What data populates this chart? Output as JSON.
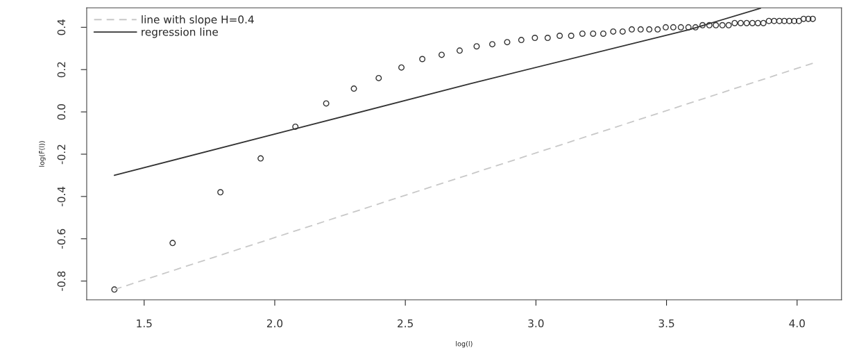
{
  "chart_data": {
    "type": "scatter",
    "xlabel": "log(l)",
    "ylabel": "log(F̂(l))",
    "xlim": [
      1.28,
      4.17
    ],
    "ylim": [
      -0.889,
      0.492
    ],
    "xticks": [
      {
        "value": 1.5,
        "label": "1.5"
      },
      {
        "value": 2.0,
        "label": "2.0"
      },
      {
        "value": 2.5,
        "label": "2.5"
      },
      {
        "value": 3.0,
        "label": "3.0"
      },
      {
        "value": 3.5,
        "label": "3.5"
      },
      {
        "value": 4.0,
        "label": "4.0"
      }
    ],
    "yticks": [
      {
        "value": -0.8,
        "label": "-0.8"
      },
      {
        "value": -0.6,
        "label": "-0.6"
      },
      {
        "value": -0.4,
        "label": "-0.4"
      },
      {
        "value": -0.2,
        "label": "-0.2"
      },
      {
        "value": 0.0,
        "label": "0.0"
      },
      {
        "value": 0.2,
        "label": "0.2"
      },
      {
        "value": 0.4,
        "label": "0.4"
      }
    ],
    "grid": false,
    "legend": "top left",
    "series": [
      {
        "type": "line",
        "name": "line with slope H=0.4",
        "color": "#c8c8c8",
        "line_style": "dashed",
        "marker": "none",
        "x": [
          1.386,
          4.06
        ],
        "values": [
          -0.84,
          0.23
        ]
      },
      {
        "type": "line",
        "name": "regression line",
        "color": "#333333",
        "line_style": "solid",
        "marker": "none",
        "x": [
          1.386,
          2.079,
          2.75,
          3.59,
          3.86
        ],
        "values": [
          -0.3,
          -0.08,
          0.134,
          0.39,
          0.49
        ]
      },
      {
        "color": "#333333",
        "marker": "circle",
        "x": [
          1.386,
          1.609,
          1.792,
          1.946,
          2.079,
          2.197,
          2.303,
          2.398,
          2.485,
          2.565,
          2.639,
          2.708,
          2.773,
          2.833,
          2.89,
          2.944,
          2.996,
          3.045,
          3.091,
          3.135,
          3.178,
          3.219,
          3.258,
          3.296,
          3.332,
          3.367,
          3.401,
          3.434,
          3.466,
          3.497,
          3.526,
          3.555,
          3.584,
          3.611,
          3.638,
          3.664,
          3.689,
          3.714,
          3.738,
          3.761,
          3.784,
          3.807,
          3.829,
          3.85,
          3.871,
          3.892,
          3.912,
          3.932,
          3.951,
          3.97,
          3.989,
          4.007,
          4.025,
          4.043,
          4.06
        ],
        "values": [
          -0.84,
          -0.62,
          -0.38,
          -0.22,
          -0.07,
          0.04,
          0.11,
          0.16,
          0.21,
          0.25,
          0.27,
          0.29,
          0.31,
          0.32,
          0.33,
          0.34,
          0.35,
          0.35,
          0.36,
          0.36,
          0.37,
          0.37,
          0.37,
          0.38,
          0.38,
          0.39,
          0.39,
          0.39,
          0.39,
          0.4,
          0.4,
          0.4,
          0.4,
          0.4,
          0.41,
          0.41,
          0.41,
          0.41,
          0.41,
          0.42,
          0.42,
          0.42,
          0.42,
          0.42,
          0.42,
          0.43,
          0.43,
          0.43,
          0.43,
          0.43,
          0.43,
          0.43,
          0.44,
          0.44,
          0.44
        ]
      }
    ]
  }
}
